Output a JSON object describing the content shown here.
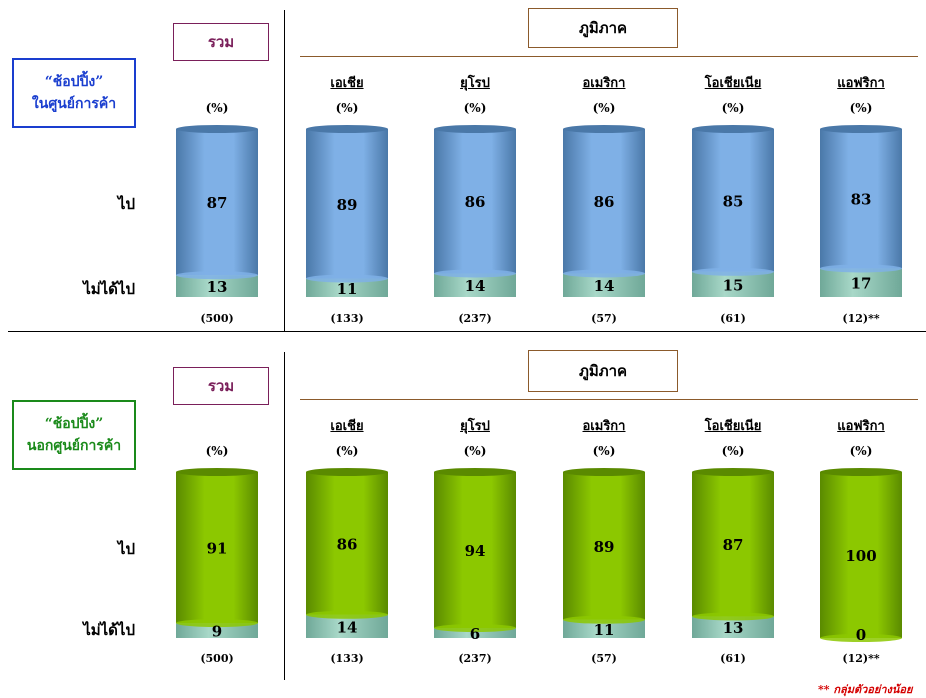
{
  "sections": [
    {
      "title_line1": "“ช้อปปิ้ง”",
      "title_line2": "ในศูนย์การค้า",
      "total_label": "รวม",
      "region_label": "ภูมิภาค",
      "pct_label": "(%)",
      "row_go": "ไป",
      "row_notgo": "ไม่ได้ไป"
    },
    {
      "title_line1": "“ช้อปปิ้ง”",
      "title_line2": "นอกศูนย์การค้า",
      "total_label": "รวม",
      "region_label": "ภูมิภาค",
      "pct_label": "(%)",
      "row_go": "ไป",
      "row_notgo": "ไม่ได้ไป"
    }
  ],
  "colors": {
    "blue_bar": "#7fb0e6",
    "blue_bar_dark": "#4a78a8",
    "green_bar": "#8cc800",
    "green_bar_dark": "#5a8a00",
    "notgo_bar": "#a8d8c8",
    "title_blue": "#1a3ecf",
    "title_green": "#1a8a1a",
    "note_red": "#d40000"
  },
  "chart_data": [
    {
      "type": "bar",
      "stacked": true,
      "categories": [
        "รวม",
        "เอเชีย",
        "ยุโรป",
        "อเมริกา",
        "โอเชียเนีย",
        "แอฟริกา"
      ],
      "bases": [
        "(500)",
        "(133)",
        "(237)",
        "(57)",
        "(61)",
        "(12)**"
      ],
      "series": [
        {
          "name": "ไป",
          "values": [
            87,
            89,
            86,
            86,
            85,
            83
          ]
        },
        {
          "name": "ไม่ได้ไป",
          "values": [
            13,
            11,
            14,
            14,
            15,
            17
          ]
        }
      ],
      "ylim": [
        0,
        100
      ]
    },
    {
      "type": "bar",
      "stacked": true,
      "categories": [
        "รวม",
        "เอเชีย",
        "ยุโรป",
        "อเมริกา",
        "โอเชียเนีย",
        "แอฟริกา"
      ],
      "bases": [
        "(500)",
        "(133)",
        "(237)",
        "(57)",
        "(61)",
        "(12)**"
      ],
      "series": [
        {
          "name": "ไป",
          "values": [
            91,
            86,
            94,
            89,
            87,
            100
          ]
        },
        {
          "name": "ไม่ได้ไป",
          "values": [
            9,
            14,
            6,
            11,
            13,
            0
          ]
        }
      ],
      "ylim": [
        0,
        100
      ]
    }
  ],
  "footnote": "** กลุ่มตัวอย่างน้อย"
}
